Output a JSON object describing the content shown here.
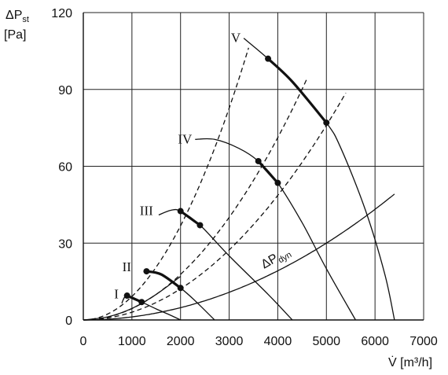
{
  "chart_data": {
    "type": "line",
    "ylabel_main": "ΔP",
    "ylabel_sub": "st",
    "ylabel_unit": "[Pa]",
    "xlabel": "V̇ [m³/h]",
    "xlim": [
      0,
      7000
    ],
    "ylim": [
      0,
      120
    ],
    "xticks": [
      "0",
      "1000",
      "2000",
      "3000",
      "4000",
      "5000",
      "6000",
      "7000"
    ],
    "yticks": [
      "0",
      "30",
      "60",
      "90",
      "120"
    ],
    "grid": true,
    "dyn_label_main": "ΔP",
    "dyn_label_sub": "dyn",
    "fan_curves": [
      {
        "name": "I",
        "label_at": [
          790,
          10
        ],
        "points": [
          [
            790,
            6.5
          ],
          [
            900,
            9.5
          ],
          [
            1200,
            7.0
          ],
          [
            1500,
            4.3
          ],
          [
            1800,
            1.8
          ],
          [
            2000,
            0
          ]
        ],
        "op_range": [
          [
            900,
            9.5
          ],
          [
            1200,
            7.0
          ]
        ]
      },
      {
        "name": "II",
        "label_at": [
          1050,
          20.5
        ],
        "points": [
          [
            1300,
            19.0
          ],
          [
            1600,
            17.8
          ],
          [
            2000,
            12.5
          ],
          [
            2300,
            7.5
          ],
          [
            2700,
            0
          ]
        ],
        "op_range": [
          [
            1300,
            19.0
          ],
          [
            1600,
            17.8
          ],
          [
            2000,
            12.5
          ]
        ]
      },
      {
        "name": "III",
        "label_at": [
          1500,
          42.5
        ],
        "points": [
          [
            1550,
            41.0
          ],
          [
            1800,
            42.8
          ],
          [
            2000,
            42.5
          ],
          [
            2400,
            37.0
          ],
          [
            3000,
            25.0
          ],
          [
            3800,
            10.0
          ],
          [
            4300,
            0
          ]
        ],
        "op_range": [
          [
            2000,
            42.5
          ],
          [
            2400,
            37.0
          ]
        ]
      },
      {
        "name": "IV",
        "label_at": [
          2300,
          70.5
        ],
        "points": [
          [
            2300,
            70.5
          ],
          [
            2700,
            70.5
          ],
          [
            3200,
            67.0
          ],
          [
            3600,
            62.0
          ],
          [
            4000,
            53.5
          ],
          [
            4500,
            38.0
          ],
          [
            5000,
            20.0
          ],
          [
            5600,
            0
          ]
        ],
        "op_range": [
          [
            3600,
            62.0
          ],
          [
            4000,
            53.5
          ]
        ]
      },
      {
        "name": "V",
        "label_at": [
          3300,
          110
        ],
        "points": [
          [
            3300,
            110
          ],
          [
            3800,
            102
          ],
          [
            4300,
            93
          ],
          [
            5000,
            77
          ],
          [
            5300,
            67
          ],
          [
            5800,
            43
          ],
          [
            6200,
            18
          ],
          [
            6400,
            0
          ]
        ],
        "op_range": [
          [
            3800,
            102
          ],
          [
            4300,
            93
          ],
          [
            5000,
            77
          ]
        ]
      }
    ],
    "operating_points": [
      [
        900,
        9.5
      ],
      [
        1200,
        7.0
      ],
      [
        1300,
        19.0
      ],
      [
        2000,
        12.5
      ],
      [
        2000,
        42.5
      ],
      [
        2400,
        37.0
      ],
      [
        3600,
        62.0
      ],
      [
        4000,
        53.5
      ],
      [
        3800,
        102
      ],
      [
        5000,
        77
      ]
    ],
    "system_curves_dashed": [
      {
        "k": 9.19e-06,
        "x_end": 3450
      },
      {
        "k": 4.45e-06,
        "x_end": 4600
      },
      {
        "k": 3.04e-06,
        "x_end": 5450
      }
    ],
    "dyn_curve": {
      "k": 1.2e-06,
      "x_end": 6400
    },
    "low_curve": {
      "points": [
        [
          0,
          0
        ],
        [
          500,
          1.2
        ],
        [
          1000,
          4.5
        ],
        [
          1500,
          10.0
        ],
        [
          2000,
          17.0
        ]
      ]
    }
  }
}
